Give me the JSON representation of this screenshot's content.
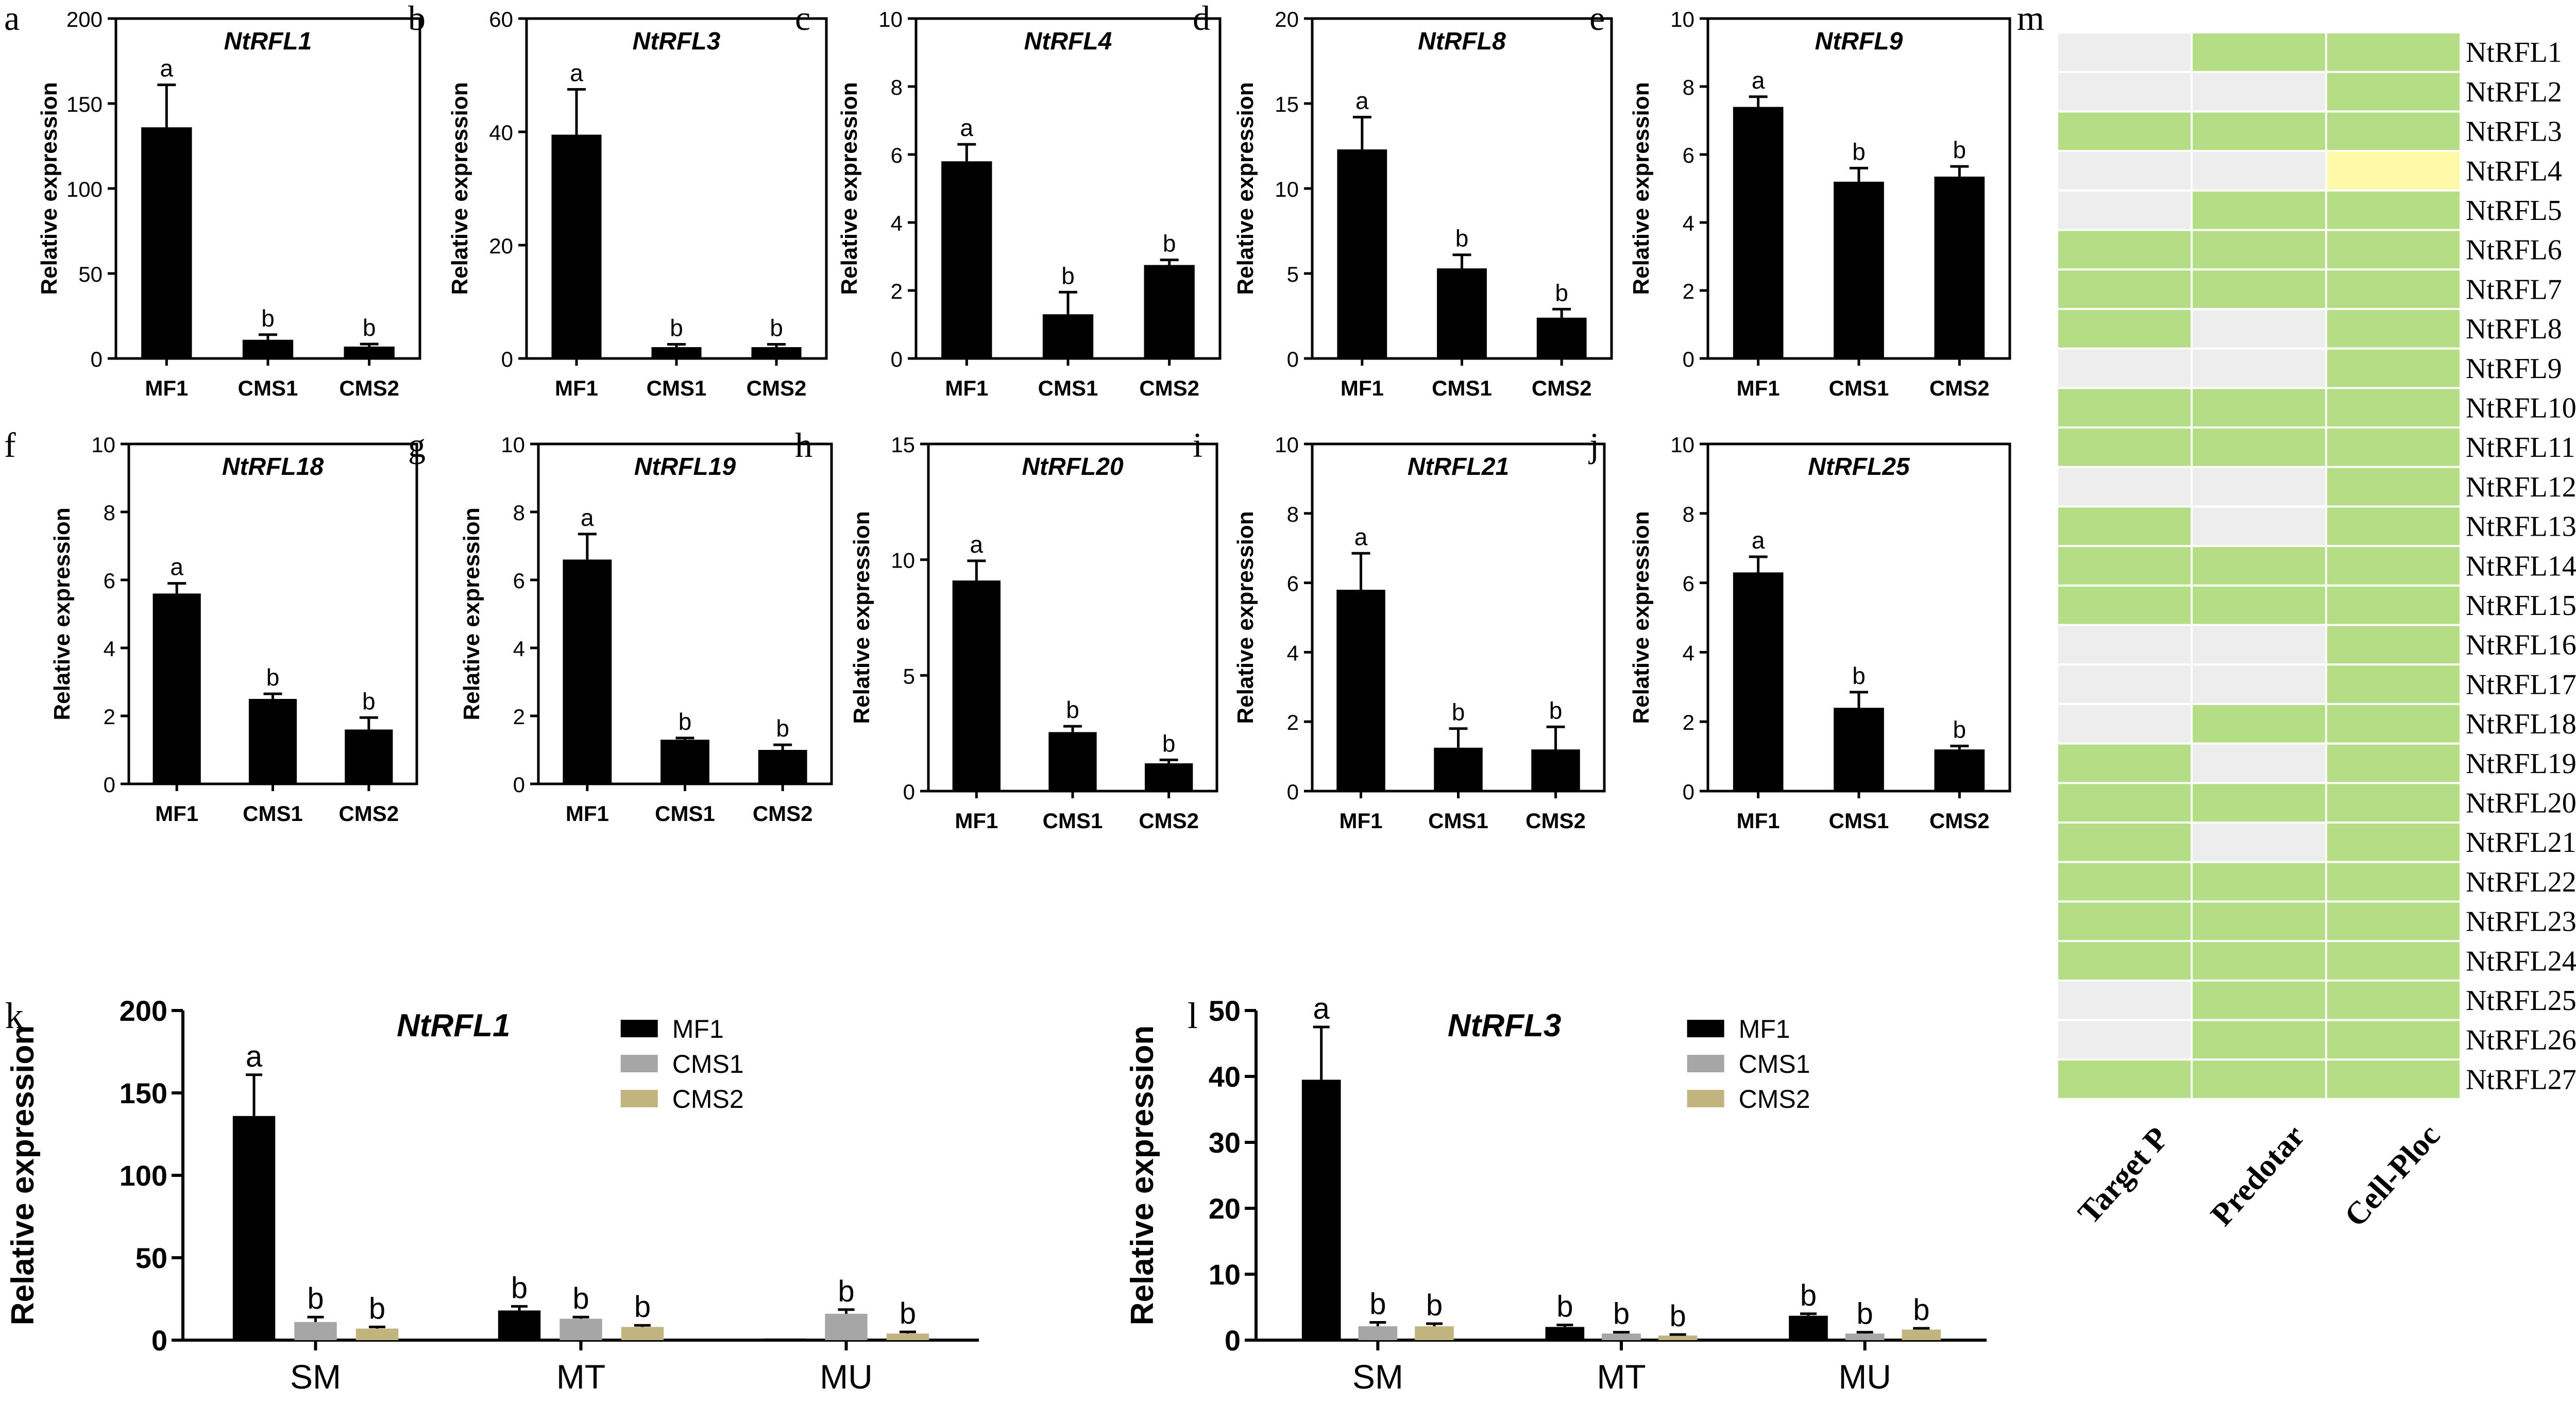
{
  "figure": {
    "ylabel": "Relative expression",
    "colors": {
      "black_bar": "#000000",
      "grey_bar": "#A6A6A6",
      "tan_bar": "#C2B47E",
      "heat_green": "#B4DE86",
      "heat_grey": "#EDEDED",
      "heat_yellow": "#FFF9A8"
    }
  },
  "chart_data": [
    {
      "panel": "a",
      "type": "bar",
      "title": "NtRFL1",
      "ylabel": "Relative expression",
      "categories": [
        "MF1",
        "CMS1",
        "CMS2"
      ],
      "values": [
        136,
        11,
        7
      ],
      "errors": [
        25,
        3,
        1.5
      ],
      "letters": [
        "a",
        "b",
        "b"
      ],
      "ylim": [
        0,
        200
      ],
      "yticks": [
        0,
        50,
        100,
        150,
        200
      ]
    },
    {
      "panel": "b",
      "type": "bar",
      "title": "NtRFL3",
      "ylabel": "Relative expression",
      "categories": [
        "MF1",
        "CMS1",
        "CMS2"
      ],
      "values": [
        39.5,
        2,
        2
      ],
      "errors": [
        8,
        0.5,
        0.5
      ],
      "letters": [
        "a",
        "b",
        "b"
      ],
      "ylim": [
        0,
        60
      ],
      "yticks": [
        0,
        20,
        40,
        60
      ]
    },
    {
      "panel": "c",
      "type": "bar",
      "title": "NtRFL4",
      "ylabel": "Relative expression",
      "categories": [
        "MF1",
        "CMS1",
        "CMS2"
      ],
      "values": [
        5.8,
        1.3,
        2.75
      ],
      "errors": [
        0.5,
        0.65,
        0.15
      ],
      "letters": [
        "a",
        "b",
        "b"
      ],
      "ylim": [
        0,
        10
      ],
      "yticks": [
        0,
        2,
        4,
        6,
        8,
        10
      ]
    },
    {
      "panel": "d",
      "type": "bar",
      "title": "NtRFL8",
      "ylabel": "Relative expression",
      "categories": [
        "MF1",
        "CMS1",
        "CMS2"
      ],
      "values": [
        12.3,
        5.3,
        2.4
      ],
      "errors": [
        1.9,
        0.8,
        0.5
      ],
      "letters": [
        "a",
        "b",
        "b"
      ],
      "ylim": [
        0,
        20
      ],
      "yticks": [
        0,
        5,
        10,
        15,
        20
      ]
    },
    {
      "panel": "e",
      "type": "bar",
      "title": "NtRFL9",
      "ylabel": "Relative expression",
      "categories": [
        "MF1",
        "CMS1",
        "CMS2"
      ],
      "values": [
        7.4,
        5.2,
        5.35
      ],
      "errors": [
        0.3,
        0.4,
        0.3
      ],
      "letters": [
        "a",
        "b",
        "b"
      ],
      "ylim": [
        0,
        10
      ],
      "yticks": [
        0,
        2,
        4,
        6,
        8,
        10
      ]
    },
    {
      "panel": "f",
      "type": "bar",
      "title": "NtRFL18",
      "ylabel": "Relative expression",
      "categories": [
        "MF1",
        "CMS1",
        "CMS2"
      ],
      "values": [
        5.6,
        2.5,
        1.6
      ],
      "errors": [
        0.3,
        0.15,
        0.35
      ],
      "letters": [
        "a",
        "b",
        "b"
      ],
      "ylim": [
        0,
        10
      ],
      "yticks": [
        0,
        2,
        4,
        6,
        8,
        10
      ]
    },
    {
      "panel": "g",
      "type": "bar",
      "title": "NtRFL19",
      "ylabel": "Relative expression",
      "categories": [
        "MF1",
        "CMS1",
        "CMS2"
      ],
      "values": [
        6.6,
        1.3,
        1.0
      ],
      "errors": [
        0.75,
        0.05,
        0.15
      ],
      "letters": [
        "a",
        "b",
        "b"
      ],
      "ylim": [
        0,
        10
      ],
      "yticks": [
        0,
        2,
        4,
        6,
        8,
        10
      ]
    },
    {
      "panel": "h",
      "type": "bar",
      "title": "NtRFL20",
      "ylabel": "Relative expression",
      "categories": [
        "MF1",
        "CMS1",
        "CMS2"
      ],
      "values": [
        9.1,
        2.55,
        1.2
      ],
      "errors": [
        0.85,
        0.25,
        0.15
      ],
      "letters": [
        "a",
        "b",
        "b"
      ],
      "ylim": [
        0,
        15
      ],
      "yticks": [
        0,
        5,
        10,
        15
      ]
    },
    {
      "panel": "i",
      "type": "bar",
      "title": "NtRFL21",
      "ylabel": "Relative expression",
      "categories": [
        "MF1",
        "CMS1",
        "CMS2"
      ],
      "values": [
        5.8,
        1.25,
        1.2
      ],
      "errors": [
        1.05,
        0.55,
        0.65
      ],
      "letters": [
        "a",
        "b",
        "b"
      ],
      "ylim": [
        0,
        10
      ],
      "yticks": [
        0,
        2,
        4,
        6,
        8,
        10
      ]
    },
    {
      "panel": "j",
      "type": "bar",
      "title": "NtRFL25",
      "ylabel": "Relative expression",
      "categories": [
        "MF1",
        "CMS1",
        "CMS2"
      ],
      "values": [
        6.3,
        2.4,
        1.2
      ],
      "errors": [
        0.45,
        0.45,
        0.1
      ],
      "letters": [
        "a",
        "b",
        "b"
      ],
      "ylim": [
        0,
        10
      ],
      "yticks": [
        0,
        2,
        4,
        6,
        8,
        10
      ]
    },
    {
      "panel": "k",
      "type": "bar",
      "title": "NtRFL1",
      "ylabel": "Relative expression",
      "categories": [
        "SM",
        "MT",
        "MU"
      ],
      "ylim": [
        0,
        200
      ],
      "yticks": [
        0,
        50,
        100,
        150,
        200
      ],
      "legend": "top-right",
      "series": [
        {
          "name": "MF1",
          "values": [
            136,
            18,
            1
          ],
          "errors": [
            25,
            2.5,
            0
          ],
          "letters": [
            "a",
            "b",
            ""
          ]
        },
        {
          "name": "CMS1",
          "values": [
            11,
            13,
            16
          ],
          "errors": [
            3,
            1,
            2.5
          ],
          "letters": [
            "b",
            "b",
            "b"
          ]
        },
        {
          "name": "CMS2",
          "values": [
            7,
            8,
            4
          ],
          "errors": [
            1,
            1,
            1
          ],
          "letters": [
            "b",
            "b",
            "b"
          ]
        }
      ]
    },
    {
      "panel": "l",
      "type": "bar",
      "title": "NtRFL3",
      "ylabel": "Relative expression",
      "categories": [
        "SM",
        "MT",
        "MU"
      ],
      "ylim": [
        0,
        50
      ],
      "yticks": [
        0,
        10,
        20,
        30,
        40,
        50
      ],
      "legend": "top-right",
      "series": [
        {
          "name": "MF1",
          "values": [
            39.5,
            2,
            3.7
          ],
          "errors": [
            8,
            0.3,
            0.3
          ],
          "letters": [
            "a",
            "b",
            "b"
          ]
        },
        {
          "name": "CMS1",
          "values": [
            2.1,
            1.0,
            1.0
          ],
          "errors": [
            0.6,
            0.2,
            0.2
          ],
          "letters": [
            "b",
            "b",
            "b"
          ]
        },
        {
          "name": "CMS2",
          "values": [
            2.1,
            0.7,
            1.6
          ],
          "errors": [
            0.4,
            0.15,
            0.2
          ],
          "letters": [
            "b",
            "b",
            "b"
          ]
        }
      ]
    },
    {
      "panel": "m",
      "type": "heatmap",
      "columns": [
        "Target P",
        "Predotar",
        "Cell-Ploc"
      ],
      "rows": [
        "NtRFL1",
        "NtRFL2",
        "NtRFL3",
        "NtRFL4",
        "NtRFL5",
        "NtRFL6",
        "NtRFL7",
        "NtRFL8",
        "NtRFL9",
        "NtRFL10",
        "NtRFL11",
        "NtRFL12",
        "NtRFL13",
        "NtRFL14",
        "NtRFL15",
        "NtRFL16",
        "NtRFL17",
        "NtRFL18",
        "NtRFL19",
        "NtRFL20",
        "NtRFL21",
        "NtRFL22",
        "NtRFL23",
        "NtRFL24",
        "NtRFL25",
        "NtRFL26",
        "NtRFL27"
      ],
      "cells": [
        [
          "grey",
          "green",
          "green"
        ],
        [
          "grey",
          "grey",
          "green"
        ],
        [
          "green",
          "green",
          "green"
        ],
        [
          "grey",
          "grey",
          "yellow"
        ],
        [
          "grey",
          "green",
          "green"
        ],
        [
          "green",
          "green",
          "green"
        ],
        [
          "green",
          "green",
          "green"
        ],
        [
          "green",
          "grey",
          "green"
        ],
        [
          "grey",
          "grey",
          "green"
        ],
        [
          "green",
          "green",
          "green"
        ],
        [
          "green",
          "green",
          "green"
        ],
        [
          "grey",
          "grey",
          "green"
        ],
        [
          "green",
          "grey",
          "green"
        ],
        [
          "green",
          "green",
          "green"
        ],
        [
          "green",
          "green",
          "green"
        ],
        [
          "grey",
          "grey",
          "green"
        ],
        [
          "grey",
          "grey",
          "green"
        ],
        [
          "grey",
          "green",
          "green"
        ],
        [
          "green",
          "grey",
          "green"
        ],
        [
          "green",
          "green",
          "green"
        ],
        [
          "green",
          "grey",
          "green"
        ],
        [
          "green",
          "green",
          "green"
        ],
        [
          "green",
          "green",
          "green"
        ],
        [
          "green",
          "green",
          "green"
        ],
        [
          "grey",
          "green",
          "green"
        ],
        [
          "grey",
          "green",
          "green"
        ],
        [
          "green",
          "green",
          "green"
        ]
      ]
    }
  ]
}
